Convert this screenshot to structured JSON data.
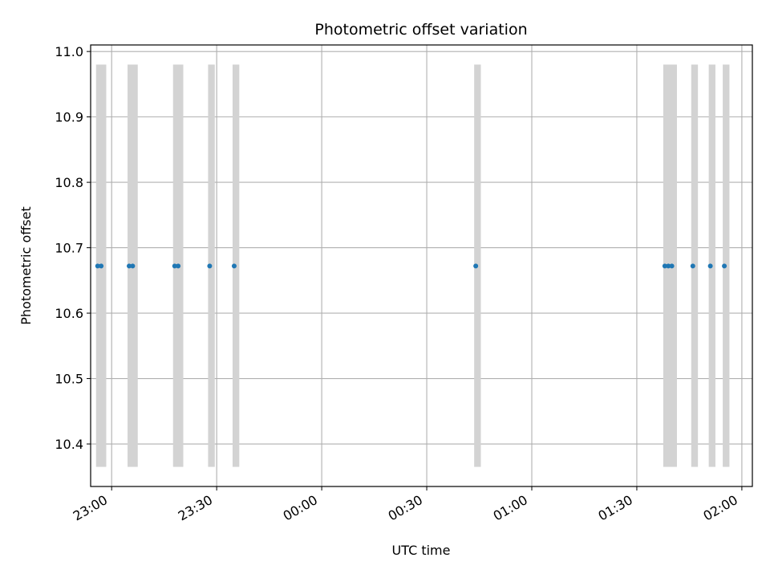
{
  "chart_data": {
    "type": "scatter",
    "title": "Photometric offset variation",
    "xlabel": "UTC time",
    "ylabel": "Photometric offset",
    "x_axis": {
      "kind": "time",
      "range": [
        "22:54",
        "02:03"
      ],
      "ticks": [
        "23:00",
        "23:30",
        "00:00",
        "00:30",
        "01:00",
        "01:30",
        "02:00"
      ]
    },
    "y_axis": {
      "range": [
        10.335,
        11.01
      ],
      "ticks": [
        "10.4",
        "10.5",
        "10.6",
        "10.7",
        "10.8",
        "10.9",
        "11.0"
      ]
    },
    "grid": true,
    "marker_color": "#1f77b4",
    "band_color": "#d3d3d3",
    "bands": [
      {
        "start": "22:56",
        "end": "22:58",
        "ymin": 10.365,
        "ymax": 10.98
      },
      {
        "start": "23:05",
        "end": "23:07",
        "ymin": 10.365,
        "ymax": 10.98
      },
      {
        "start": "23:18",
        "end": "23:20",
        "ymin": 10.365,
        "ymax": 10.98
      },
      {
        "start": "23:28",
        "end": "23:29",
        "ymin": 10.365,
        "ymax": 10.98
      },
      {
        "start": "23:35",
        "end": "23:36",
        "ymin": 10.365,
        "ymax": 10.98
      },
      {
        "start": "00:44",
        "end": "00:45",
        "ymin": 10.365,
        "ymax": 10.98
      },
      {
        "start": "01:38",
        "end": "01:41",
        "ymin": 10.365,
        "ymax": 10.98
      },
      {
        "start": "01:46",
        "end": "01:47",
        "ymin": 10.365,
        "ymax": 10.98
      },
      {
        "start": "01:51",
        "end": "01:52",
        "ymin": 10.365,
        "ymax": 10.98
      },
      {
        "start": "01:55",
        "end": "01:56",
        "ymin": 10.365,
        "ymax": 10.98
      }
    ],
    "points": [
      {
        "x": "22:56",
        "y": 10.672
      },
      {
        "x": "22:57",
        "y": 10.672
      },
      {
        "x": "23:05",
        "y": 10.672
      },
      {
        "x": "23:06",
        "y": 10.672
      },
      {
        "x": "23:18",
        "y": 10.672
      },
      {
        "x": "23:19",
        "y": 10.672
      },
      {
        "x": "23:28",
        "y": 10.672
      },
      {
        "x": "23:35",
        "y": 10.672
      },
      {
        "x": "00:44",
        "y": 10.672
      },
      {
        "x": "01:38",
        "y": 10.672
      },
      {
        "x": "01:39",
        "y": 10.672
      },
      {
        "x": "01:40",
        "y": 10.672
      },
      {
        "x": "01:46",
        "y": 10.672
      },
      {
        "x": "01:51",
        "y": 10.672
      },
      {
        "x": "01:55",
        "y": 10.672
      }
    ]
  }
}
